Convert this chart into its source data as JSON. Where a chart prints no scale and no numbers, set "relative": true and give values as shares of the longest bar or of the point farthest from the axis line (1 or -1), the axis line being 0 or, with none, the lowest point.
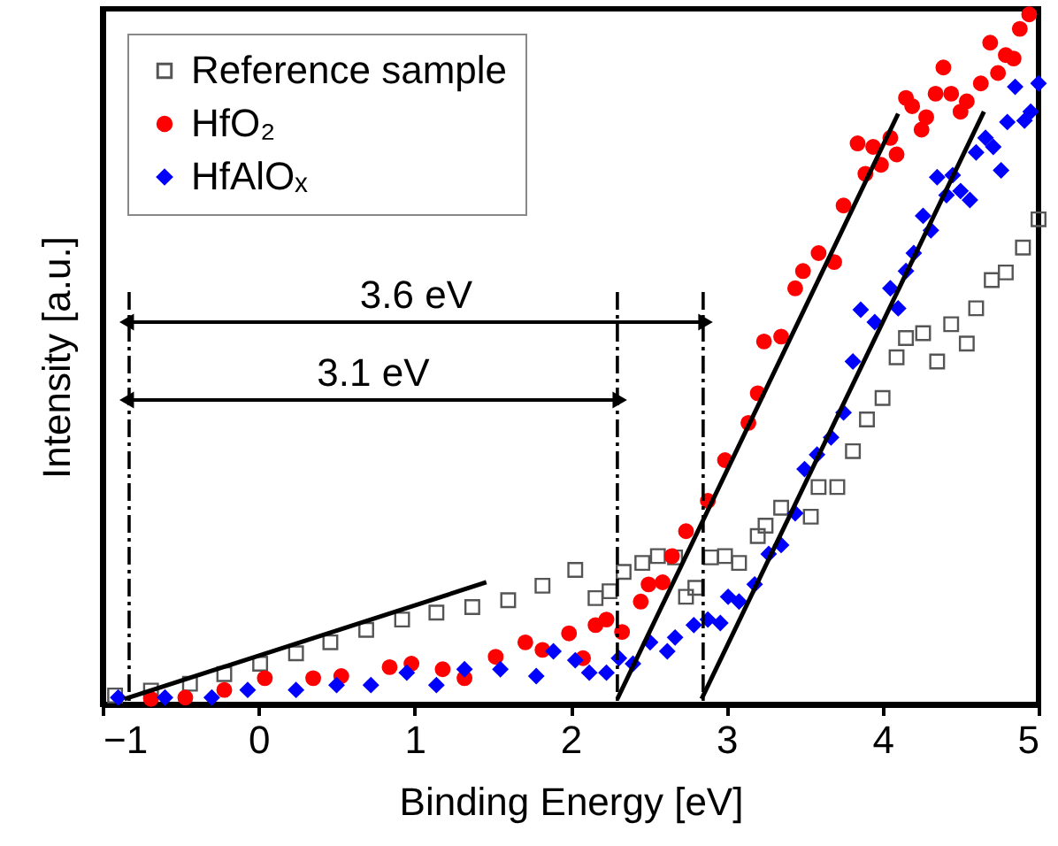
{
  "chart_data": {
    "type": "scatter",
    "xlabel": "Binding Energy [eV]",
    "ylabel": "Intensity [a.u.]",
    "relative": true,
    "xlim": [
      -1,
      5
    ],
    "xticks": [
      -1,
      0,
      1,
      2,
      3,
      4,
      5
    ],
    "grid": false,
    "legend": "top left",
    "tick_labels": "x",
    "series": [
      {
        "name": "Reference sample",
        "color": "#555555",
        "marker": "square",
        "x": [
          -0.92,
          -0.69,
          -0.44,
          -0.22,
          0.01,
          0.24,
          0.46,
          0.69,
          0.92,
          1.14,
          1.37,
          1.6,
          1.82,
          2.03,
          2.16,
          2.25,
          2.34,
          2.46,
          2.56,
          2.67,
          2.74,
          2.8,
          2.9,
          2.99,
          3.08,
          3.2,
          3.25,
          3.35,
          3.54,
          3.59,
          3.71,
          3.81,
          3.9,
          4.0,
          4.09,
          4.15,
          4.26,
          4.35,
          4.44,
          4.54,
          4.6,
          4.7,
          4.79,
          4.9,
          5.0
        ],
        "values": [
          0.013,
          0.02,
          0.03,
          0.044,
          0.059,
          0.074,
          0.09,
          0.108,
          0.123,
          0.133,
          0.141,
          0.151,
          0.172,
          0.195,
          0.154,
          0.164,
          0.192,
          0.205,
          0.215,
          0.213,
          0.156,
          0.169,
          0.213,
          0.215,
          0.205,
          0.244,
          0.259,
          0.285,
          0.272,
          0.315,
          0.315,
          0.367,
          0.413,
          0.444,
          0.503,
          0.531,
          0.538,
          0.497,
          0.551,
          0.523,
          0.574,
          0.615,
          0.626,
          0.662,
          0.703
        ]
      },
      {
        "name": "HfO₂",
        "color": "#ff0000",
        "marker": "circle",
        "x": [
          -0.69,
          -0.47,
          -0.22,
          0.04,
          0.35,
          0.53,
          0.84,
          0.98,
          1.18,
          1.32,
          1.52,
          1.71,
          1.82,
          1.99,
          2.08,
          2.16,
          2.23,
          2.33,
          2.45,
          2.5,
          2.59,
          2.65,
          2.74,
          2.88,
          2.99,
          3.14,
          3.2,
          3.24,
          3.35,
          3.44,
          3.49,
          3.59,
          3.69,
          3.75,
          3.84,
          3.89,
          3.94,
          3.99,
          4.05,
          4.09,
          4.15,
          4.19,
          4.25,
          4.28,
          4.34,
          4.39,
          4.44,
          4.5,
          4.54,
          4.63,
          4.69,
          4.74,
          4.79,
          4.84,
          4.88,
          4.94
        ],
        "values": [
          0.008,
          0.01,
          0.021,
          0.038,
          0.038,
          0.041,
          0.054,
          0.059,
          0.051,
          0.038,
          0.069,
          0.09,
          0.079,
          0.103,
          0.067,
          0.115,
          0.123,
          0.105,
          0.149,
          0.174,
          0.177,
          0.215,
          0.251,
          0.295,
          0.354,
          0.408,
          0.451,
          0.526,
          0.533,
          0.603,
          0.628,
          0.654,
          0.641,
          0.723,
          0.813,
          0.769,
          0.808,
          0.782,
          0.821,
          0.797,
          0.879,
          0.867,
          0.833,
          0.851,
          0.885,
          0.923,
          0.885,
          0.859,
          0.874,
          0.9,
          0.959,
          0.915,
          0.941,
          0.936,
          0.979,
          1.0
        ]
      },
      {
        "name": "HfAlOₓ",
        "color": "#0000ff",
        "marker": "diamond",
        "x": [
          -0.9,
          -0.6,
          -0.3,
          -0.07,
          0.24,
          0.5,
          0.72,
          0.95,
          1.14,
          1.32,
          1.55,
          1.78,
          1.89,
          2.03,
          2.12,
          2.23,
          2.31,
          2.4,
          2.51,
          2.62,
          2.67,
          2.79,
          2.88,
          2.96,
          3.01,
          3.08,
          3.18,
          3.27,
          3.35,
          3.44,
          3.5,
          3.58,
          3.67,
          3.75,
          3.81,
          3.86,
          3.95,
          4.05,
          4.1,
          4.15,
          4.2,
          4.26,
          4.31,
          4.35,
          4.41,
          4.45,
          4.5,
          4.56,
          4.6,
          4.66,
          4.71,
          4.76,
          4.8,
          4.85,
          4.91,
          4.95,
          5.0
        ],
        "values": [
          0.01,
          0.01,
          0.01,
          0.021,
          0.021,
          0.028,
          0.028,
          0.046,
          0.028,
          0.051,
          0.051,
          0.041,
          0.077,
          0.064,
          0.046,
          0.046,
          0.067,
          0.059,
          0.09,
          0.077,
          0.097,
          0.115,
          0.123,
          0.118,
          0.156,
          0.149,
          0.174,
          0.218,
          0.231,
          0.277,
          0.341,
          0.362,
          0.387,
          0.423,
          0.497,
          0.572,
          0.554,
          0.603,
          0.574,
          0.628,
          0.654,
          0.708,
          0.687,
          0.764,
          0.738,
          0.767,
          0.744,
          0.731,
          0.8,
          0.821,
          0.808,
          0.774,
          0.844,
          0.895,
          0.846,
          0.859,
          0.9
        ]
      },
      {
        "type": "line",
        "color": "#000000",
        "x": [
          -0.86,
          1.46
        ],
        "values": [
          0.008,
          0.177
        ]
      },
      {
        "type": "line",
        "color": "#000000",
        "x": [
          2.3,
          4.1
        ],
        "values": [
          0.008,
          0.856
        ]
      },
      {
        "type": "line",
        "color": "#000000",
        "x": [
          2.84,
          4.65
        ],
        "values": [
          0.008,
          0.859
        ]
      }
    ],
    "ref_lines": [
      {
        "axis": "x",
        "value": -0.83,
        "color": "#000000",
        "line_style": "dashed"
      },
      {
        "axis": "x",
        "value": 2.3,
        "color": "#000000",
        "line_style": "dashed"
      },
      {
        "axis": "x",
        "value": 2.85,
        "color": "#000000",
        "line_style": "dashed"
      }
    ],
    "annotations": [
      "3.6 eV",
      "3.1 eV"
    ]
  }
}
